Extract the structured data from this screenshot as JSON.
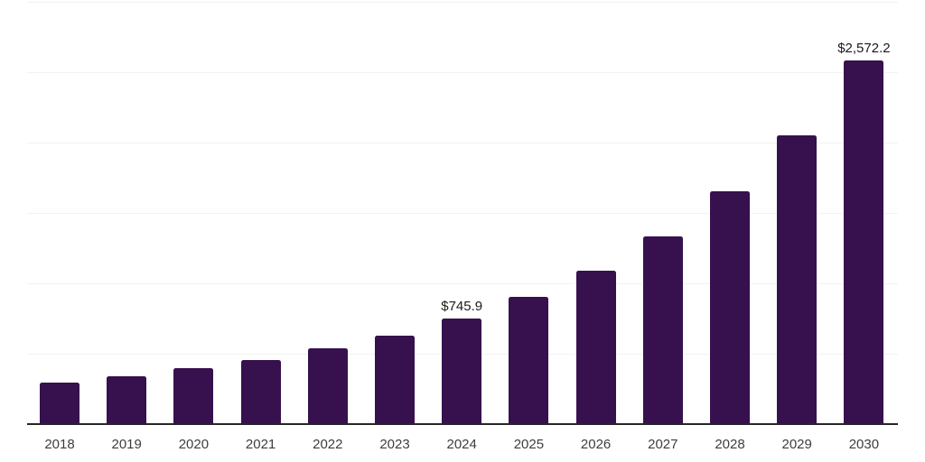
{
  "chart_data": {
    "type": "bar",
    "title": "",
    "xlabel": "",
    "ylabel": "",
    "categories": [
      "2018",
      "2019",
      "2020",
      "2021",
      "2022",
      "2023",
      "2024",
      "2025",
      "2026",
      "2027",
      "2028",
      "2029",
      "2030"
    ],
    "values": [
      291,
      336,
      393,
      451,
      534,
      623,
      745.9,
      898,
      1083,
      1326,
      1646,
      2042,
      2572.2
    ],
    "data_labels": {
      "2024": "$745.9",
      "2030": "$2,572.2"
    },
    "ylim": [
      0,
      3000
    ],
    "gridline_step": 500,
    "y_axis_labels_visible": false,
    "legend_position": "none",
    "grid": "horizontal",
    "colors": {
      "bar": "#36114D",
      "gridline": "#F2F2F2",
      "axis_line": "#262626",
      "tick_label": "#3D3D3D",
      "data_label": "#1A1A1A",
      "background": "#FFFFFF"
    }
  }
}
